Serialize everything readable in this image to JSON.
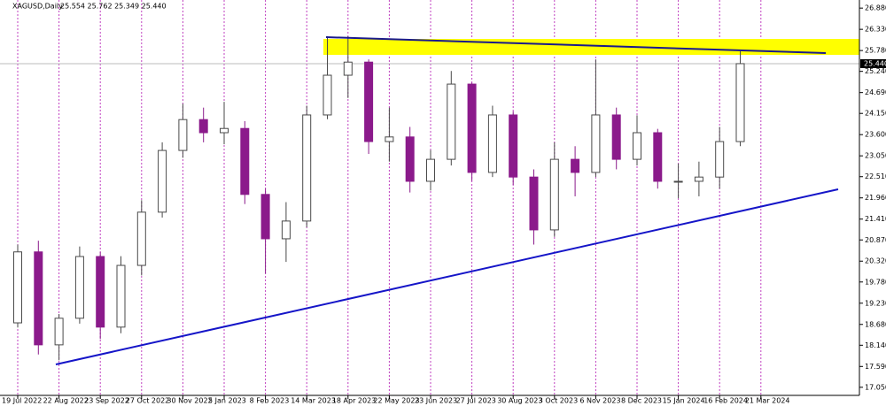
{
  "chart_data": {
    "type": "candlestick",
    "title": "XAGUSD,Daily",
    "ohlc_text": "25.554 25.762 25.349 25.440",
    "categories": [
      "19 Jul 2022",
      null,
      "22 Aug 2022",
      null,
      "23 Sep 2022",
      null,
      "27 Oct 2022",
      null,
      "30 Nov 2022",
      null,
      "5 Jan 2023",
      null,
      "8 Feb 2023",
      null,
      "14 Mar 2023",
      null,
      "18 Apr 2023",
      null,
      "22 May 2023",
      null,
      "23 Jun 2023",
      null,
      "27 Jul 2023",
      null,
      "30 Aug 2023",
      null,
      "3 Oct 2023",
      null,
      "6 Nov 2023",
      null,
      "8 Dec 2023",
      null,
      "15 Jan 2024",
      null,
      "16 Feb 2024",
      null,
      "21 Mar 2024"
    ],
    "open": [
      18.72,
      20.56,
      18.15,
      18.84,
      20.44,
      18.61,
      20.21,
      21.59,
      23.19,
      23.99,
      23.65,
      23.76,
      22.05,
      20.9,
      21.36,
      24.11,
      25.14,
      25.48,
      23.42,
      23.54,
      22.39,
      22.96,
      24.91,
      22.62,
      24.11,
      22.5,
      21.13,
      22.96,
      22.62,
      24.11,
      22.96,
      23.65,
      22.39,
      22.39,
      22.5,
      23.42,
      null
    ],
    "high": [
      20.75,
      20.85,
      18.95,
      20.7,
      20.55,
      20.45,
      21.9,
      23.4,
      24.4,
      24.3,
      24.45,
      23.95,
      22.2,
      21.85,
      24.35,
      26.15,
      26.15,
      25.55,
      24.3,
      23.8,
      23.2,
      25.25,
      24.95,
      24.35,
      24.2,
      22.7,
      23.4,
      23.3,
      25.55,
      24.3,
      24.1,
      23.75,
      22.85,
      22.9,
      23.8,
      25.76,
      null
    ],
    "low": [
      18.6,
      17.9,
      17.75,
      18.7,
      18.3,
      18.45,
      19.95,
      21.45,
      23.0,
      23.4,
      23.35,
      21.8,
      20.0,
      20.3,
      21.2,
      24.0,
      24.55,
      23.1,
      22.9,
      22.1,
      22.15,
      22.8,
      22.4,
      22.5,
      22.3,
      20.75,
      20.95,
      22.0,
      22.5,
      22.7,
      22.8,
      22.2,
      21.95,
      22.0,
      22.2,
      23.3,
      null
    ],
    "close": [
      20.56,
      18.15,
      18.84,
      20.44,
      18.61,
      20.21,
      21.59,
      23.19,
      23.99,
      23.65,
      23.76,
      22.05,
      20.9,
      21.36,
      24.11,
      25.14,
      25.48,
      23.42,
      23.54,
      22.39,
      22.96,
      24.91,
      22.62,
      24.11,
      22.5,
      21.13,
      22.96,
      22.62,
      24.11,
      22.96,
      23.65,
      22.39,
      22.39,
      22.5,
      23.42,
      25.44,
      null
    ],
    "up_color": "#4a4a4a",
    "down_color": "#8b1a8b",
    "last_price": {
      "value": 25.44,
      "label": "25.440"
    },
    "ylim": [
      16.84,
      27.09
    ],
    "yticks": [
      {
        "value": 26.88,
        "label": "26.880"
      },
      {
        "value": 26.33,
        "label": "26.330"
      },
      {
        "value": 25.78,
        "label": "25.780"
      },
      {
        "value": 25.24,
        "label": "25.240"
      },
      {
        "value": 24.69,
        "label": "24.690"
      },
      {
        "value": 24.15,
        "label": "24.150"
      },
      {
        "value": 23.6,
        "label": "23.600"
      },
      {
        "value": 23.05,
        "label": "23.050"
      },
      {
        "value": 22.51,
        "label": "22.510"
      },
      {
        "value": 21.96,
        "label": "21.960"
      },
      {
        "value": 21.41,
        "label": "21.410"
      },
      {
        "value": 20.87,
        "label": "20.870"
      },
      {
        "value": 20.32,
        "label": "20.320"
      },
      {
        "value": 19.78,
        "label": "19.780"
      },
      {
        "value": 19.23,
        "label": "19.230"
      },
      {
        "value": 18.68,
        "label": "18.680"
      },
      {
        "value": 18.14,
        "label": "18.140"
      },
      {
        "value": 17.59,
        "label": "17.590"
      },
      {
        "value": 17.05,
        "label": "17.050"
      }
    ]
  }
}
